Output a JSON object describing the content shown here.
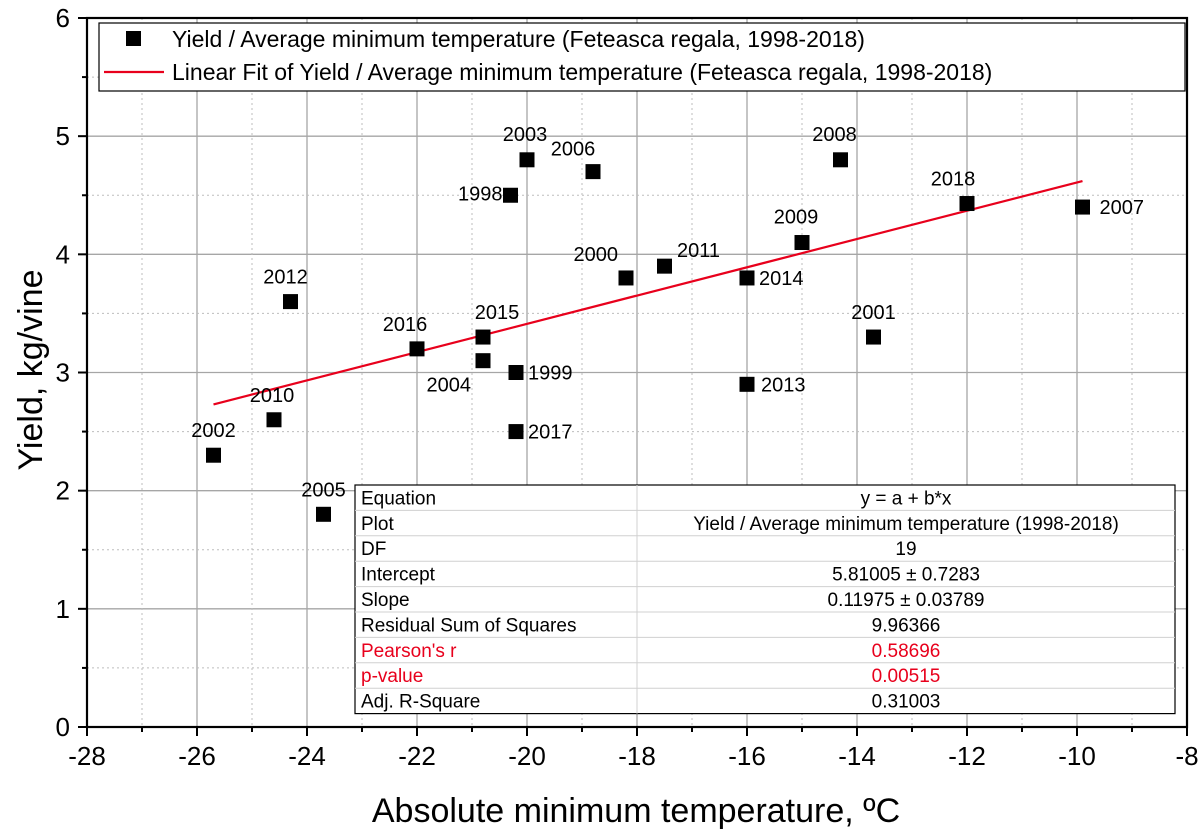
{
  "chart_data": {
    "type": "scatter",
    "xlabel": "Absolute minimum temperature, ºC",
    "ylabel": "Yield, kg/vine",
    "xlim": [
      -28,
      -8
    ],
    "ylim": [
      0,
      6
    ],
    "xticks": [
      -28,
      -26,
      -24,
      -22,
      -20,
      -18,
      -16,
      -14,
      -12,
      -10,
      -8
    ],
    "yticks": [
      0,
      1,
      2,
      3,
      4,
      5,
      6
    ],
    "grid": true,
    "legend_placement": "top-left",
    "series": [
      {
        "name": "Yield / Average minimum temperature (Feteasca regala, 1998-2018)",
        "type": "scatter",
        "marker": "square",
        "color": "#000000",
        "points": [
          {
            "label": "1998",
            "x": -20.3,
            "y": 4.5
          },
          {
            "label": "1999",
            "x": -20.2,
            "y": 3.0
          },
          {
            "label": "2000",
            "x": -18.2,
            "y": 3.8
          },
          {
            "label": "2001",
            "x": -13.7,
            "y": 3.3
          },
          {
            "label": "2002",
            "x": -25.7,
            "y": 2.3
          },
          {
            "label": "2003",
            "x": -20.0,
            "y": 4.8
          },
          {
            "label": "2004",
            "x": -20.8,
            "y": 3.1
          },
          {
            "label": "2005",
            "x": -23.7,
            "y": 1.8
          },
          {
            "label": "2006",
            "x": -18.8,
            "y": 4.7
          },
          {
            "label": "2007",
            "x": -9.9,
            "y": 4.4
          },
          {
            "label": "2008",
            "x": -14.3,
            "y": 4.8
          },
          {
            "label": "2009",
            "x": -15.0,
            "y": 4.1
          },
          {
            "label": "2010",
            "x": -24.6,
            "y": 2.6
          },
          {
            "label": "2011",
            "x": -17.5,
            "y": 3.9
          },
          {
            "label": "2012",
            "x": -24.3,
            "y": 3.6
          },
          {
            "label": "2013",
            "x": -16.0,
            "y": 2.9
          },
          {
            "label": "2014",
            "x": -16.0,
            "y": 3.8
          },
          {
            "label": "2015",
            "x": -20.8,
            "y": 3.3
          },
          {
            "label": "2016",
            "x": -22.0,
            "y": 3.2
          },
          {
            "label": "2017",
            "x": -20.2,
            "y": 2.5
          },
          {
            "label": "2018",
            "x": -12.0,
            "y": 4.43
          }
        ]
      },
      {
        "name": "Linear Fit of Yield / Average minimum temperature (Feteasca regala, 1998-2018)",
        "type": "line",
        "color": "#e8001c",
        "x": [
          -25.7,
          -9.9
        ],
        "y": [
          2.73,
          4.62
        ]
      }
    ],
    "stats_table": {
      "rows": [
        {
          "label": "Equation",
          "value": "y = a + b*x",
          "highlight": false
        },
        {
          "label": "Plot",
          "value": "Yield / Average minimum temperature (1998-2018)",
          "highlight": false
        },
        {
          "label": "DF",
          "value": "19",
          "highlight": false
        },
        {
          "label": "Intercept",
          "value": "5.81005 ± 0.7283",
          "highlight": false
        },
        {
          "label": "Slope",
          "value": "0.11975 ± 0.03789",
          "highlight": false
        },
        {
          "label": "Residual Sum of Squares",
          "value": "9.96366",
          "highlight": false
        },
        {
          "label": "Pearson's r",
          "value": "0.58696",
          "highlight": true
        },
        {
          "label": "p-value",
          "value": "0.00515",
          "highlight": true
        },
        {
          "label": "Adj. R-Square",
          "value": "0.31003",
          "highlight": false
        }
      ]
    }
  }
}
